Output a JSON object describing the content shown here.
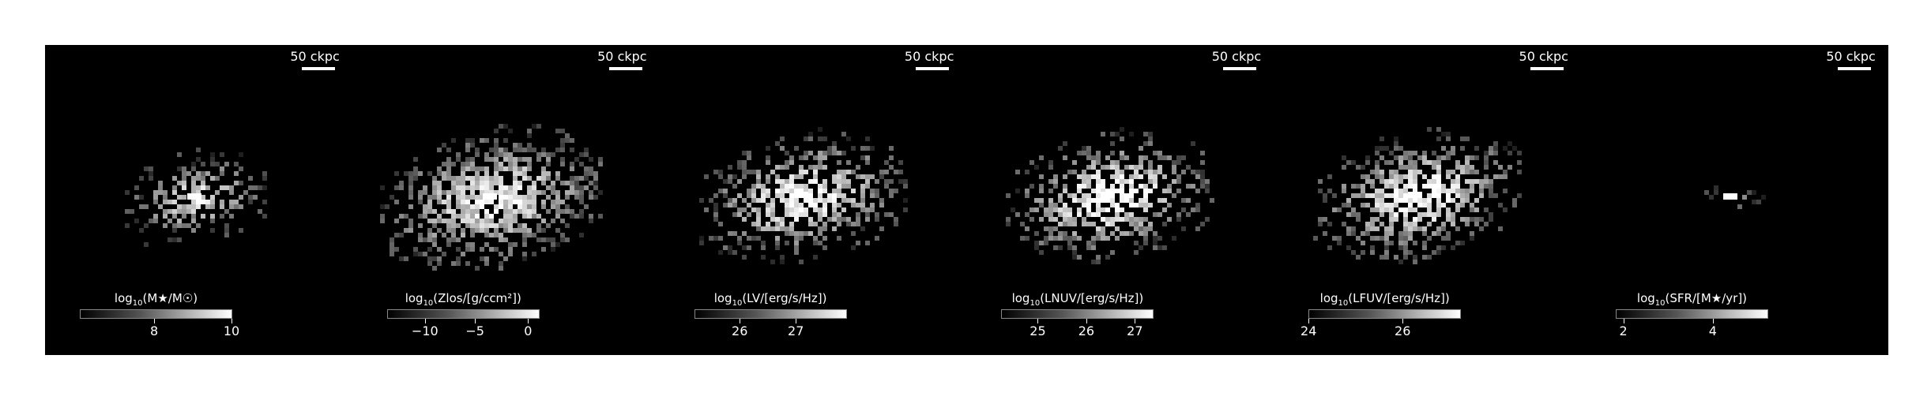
{
  "scale_bar_label": "50 ckpc",
  "panels": [
    {
      "id": "stellar-mass",
      "colorbar": {
        "title_main": "log",
        "title_sub": "10",
        "title_rest": "(M★/M☉)",
        "ticks": [
          {
            "label": "8",
            "frac": 0.49
          },
          {
            "label": "10",
            "frac": 1.0
          }
        ]
      }
    },
    {
      "id": "metallicity",
      "colorbar": {
        "title_main": "log",
        "title_sub": "10",
        "title_rest": "(Zlos/[g/ccm²])",
        "ticks": [
          {
            "label": "−10",
            "frac": 0.25
          },
          {
            "label": "−5",
            "frac": 0.58
          },
          {
            "label": "0",
            "frac": 0.93
          }
        ]
      }
    },
    {
      "id": "luminosity-v",
      "colorbar": {
        "title_main": "log",
        "title_sub": "10",
        "title_rest": "(LV/[erg/s/Hz])",
        "ticks": [
          {
            "label": "26",
            "frac": 0.3
          },
          {
            "label": "27",
            "frac": 0.67
          }
        ]
      }
    },
    {
      "id": "luminosity-nuv",
      "colorbar": {
        "title_main": "log",
        "title_sub": "10",
        "title_rest": "(LNUV/[erg/s/Hz])",
        "ticks": [
          {
            "label": "25",
            "frac": 0.24
          },
          {
            "label": "26",
            "frac": 0.56
          },
          {
            "label": "27",
            "frac": 0.88
          }
        ]
      }
    },
    {
      "id": "luminosity-fuv",
      "colorbar": {
        "title_main": "log",
        "title_sub": "10",
        "title_rest": "(LFUV/[erg/s/Hz])",
        "ticks": [
          {
            "label": "24",
            "frac": 0.0
          },
          {
            "label": "26",
            "frac": 0.62
          }
        ]
      }
    },
    {
      "id": "sfr",
      "colorbar": {
        "title_main": "log",
        "title_sub": "10",
        "title_rest": "(SFR/[M★/yr])",
        "ticks": [
          {
            "label": "2",
            "frac": 0.05
          },
          {
            "label": "4",
            "frac": 0.64
          }
        ]
      }
    }
  ]
}
